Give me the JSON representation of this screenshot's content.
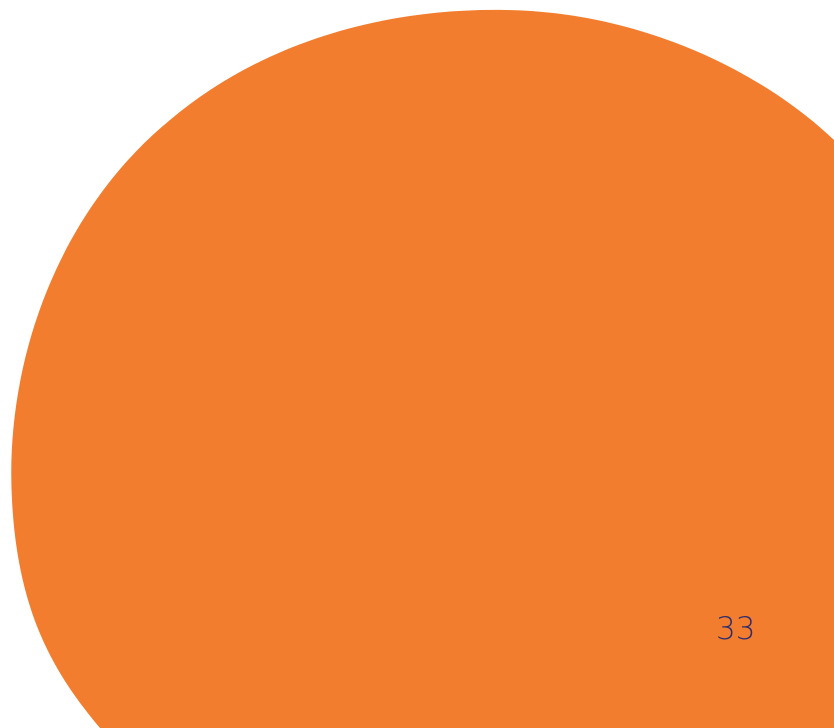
{
  "page": {
    "number": "33"
  },
  "colors": {
    "background": "#ffffff",
    "shape_fill": "#f37d2e",
    "page_number_text": "#2b2d6e"
  }
}
